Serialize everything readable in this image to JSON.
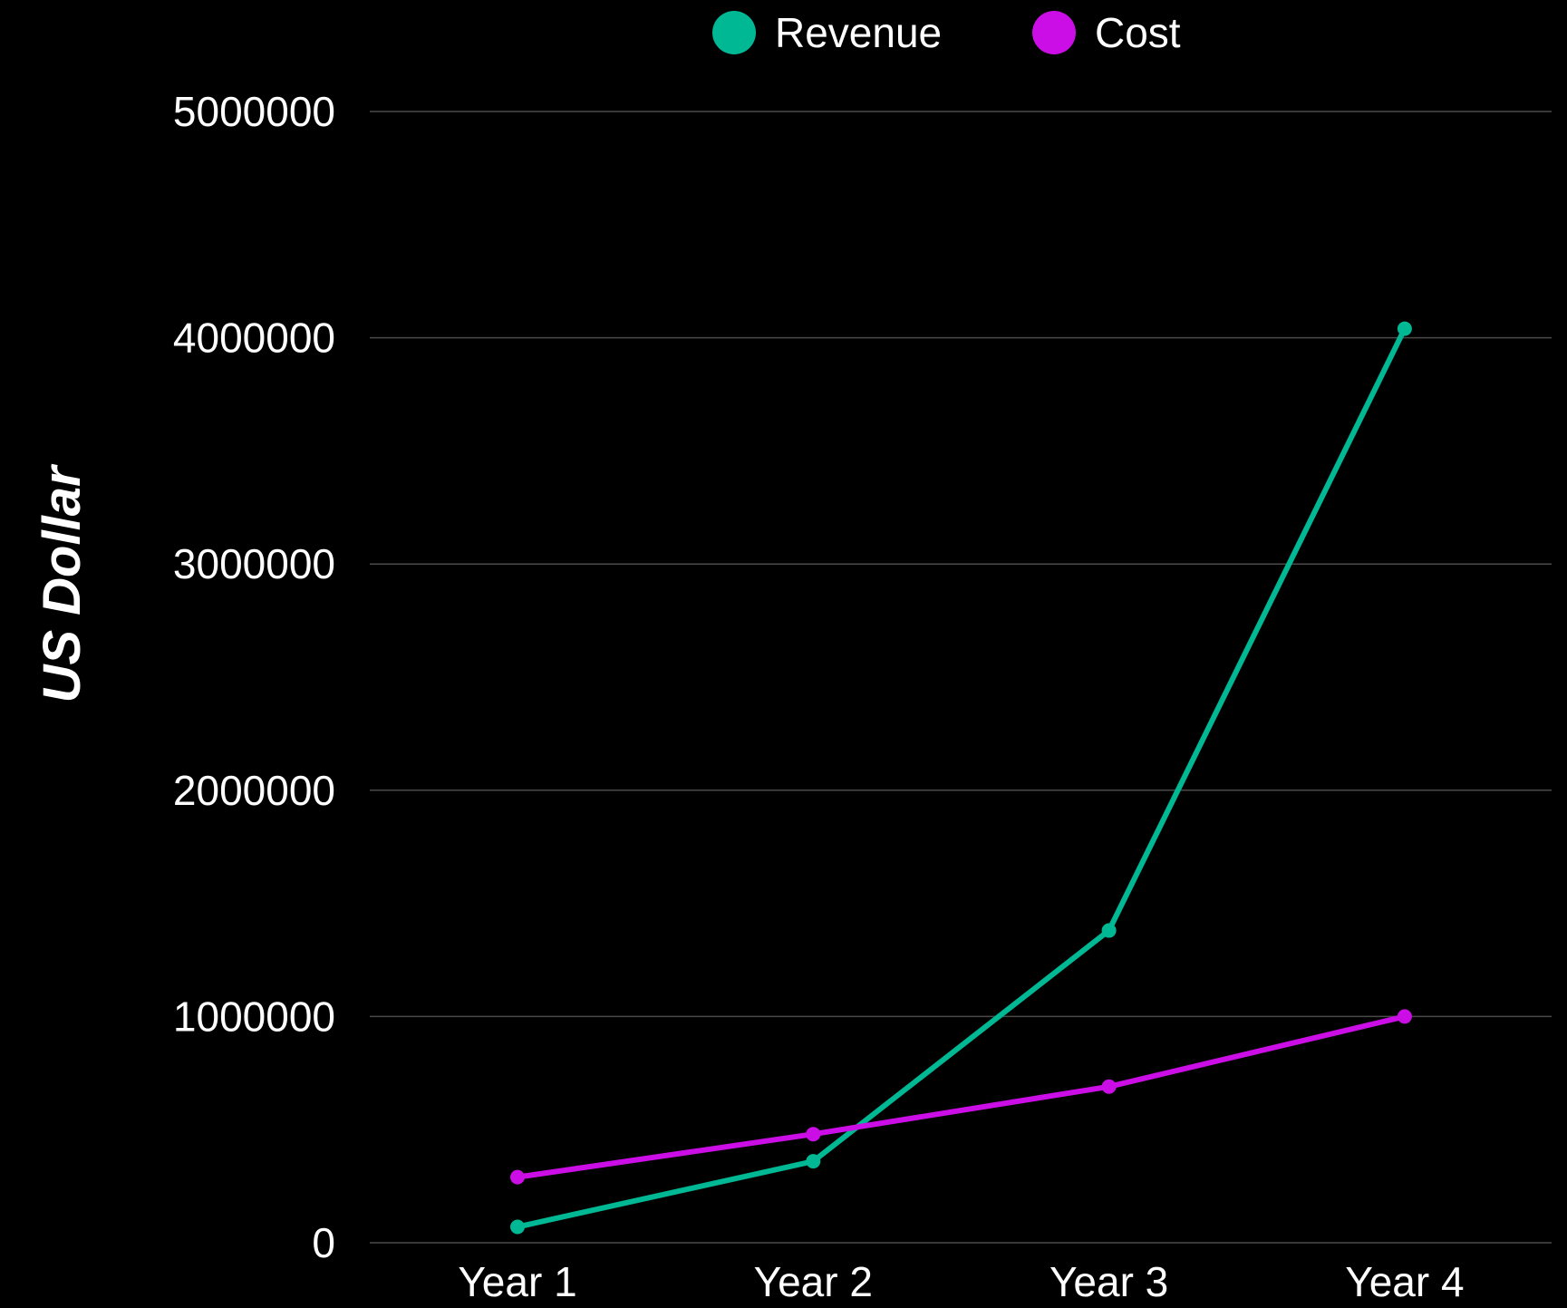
{
  "chart_data": {
    "type": "line",
    "title": "",
    "xlabel": "",
    "ylabel": "US Dollar",
    "categories": [
      "Year 1",
      "Year 2",
      "Year 3",
      "Year 4"
    ],
    "y_ticks": [
      "0",
      "1000000",
      "2000000",
      "3000000",
      "4000000",
      "5000000"
    ],
    "ylim": [
      0,
      5000000
    ],
    "grid": true,
    "legend_position": "top-center",
    "series": [
      {
        "name": "Revenue",
        "color": "#00b894",
        "values": [
          70000,
          360000,
          1380000,
          4040000
        ]
      },
      {
        "name": "Cost",
        "color": "#cc0ee6",
        "values": [
          290000,
          480000,
          690000,
          1000000
        ]
      }
    ]
  }
}
